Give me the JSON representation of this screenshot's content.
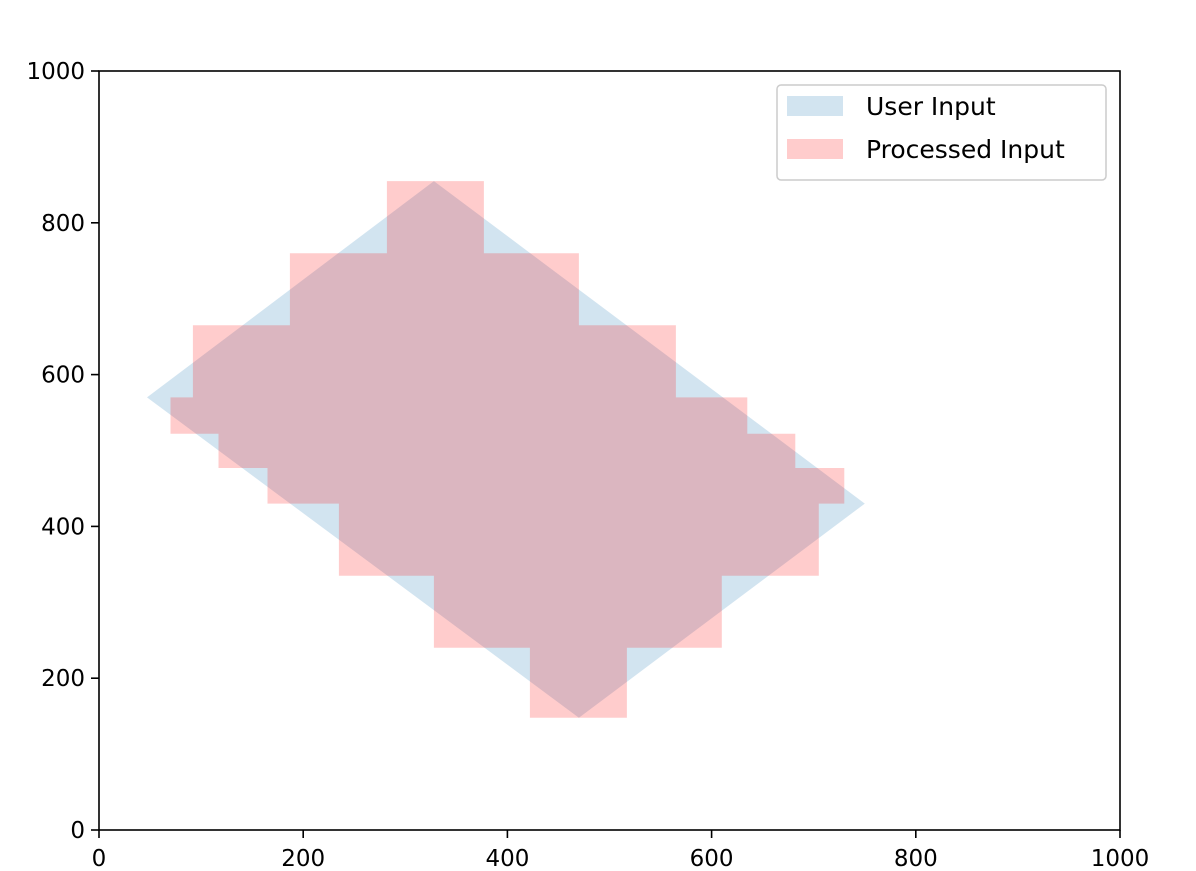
{
  "chart_data": {
    "type": "area",
    "title": "",
    "xlabel": "",
    "ylabel": "",
    "xlim": [
      0,
      1000
    ],
    "ylim": [
      0,
      1000
    ],
    "xticks": [
      0,
      200,
      400,
      600,
      800,
      1000
    ],
    "yticks": [
      0,
      200,
      400,
      600,
      800,
      1000
    ],
    "grid": false,
    "legend_position": "top-right",
    "series": [
      {
        "name": "User Input",
        "color": "#1f77b4",
        "opacity": 0.2,
        "points": [
          [
            47,
            570
          ],
          [
            328,
            855
          ],
          [
            750,
            430
          ],
          [
            470,
            148
          ]
        ]
      },
      {
        "name": "Processed Input",
        "color": "#ff0000",
        "opacity": 0.2,
        "points": [
          [
            70,
            570
          ],
          [
            92,
            570
          ],
          [
            92,
            665
          ],
          [
            187,
            665
          ],
          [
            187,
            760
          ],
          [
            282,
            760
          ],
          [
            282,
            855
          ],
          [
            377,
            855
          ],
          [
            377,
            760
          ],
          [
            470,
            760
          ],
          [
            470,
            665
          ],
          [
            565,
            665
          ],
          [
            565,
            570
          ],
          [
            635,
            570
          ],
          [
            635,
            522
          ],
          [
            682,
            522
          ],
          [
            682,
            477
          ],
          [
            730,
            477
          ],
          [
            730,
            430
          ],
          [
            705,
            430
          ],
          [
            705,
            335
          ],
          [
            610,
            335
          ],
          [
            610,
            240
          ],
          [
            517,
            240
          ],
          [
            517,
            148
          ],
          [
            422,
            148
          ],
          [
            422,
            240
          ],
          [
            328,
            240
          ],
          [
            328,
            335
          ],
          [
            235,
            335
          ],
          [
            235,
            430
          ],
          [
            165,
            430
          ],
          [
            165,
            477
          ],
          [
            117,
            477
          ],
          [
            117,
            522
          ],
          [
            70,
            522
          ]
        ]
      }
    ]
  }
}
